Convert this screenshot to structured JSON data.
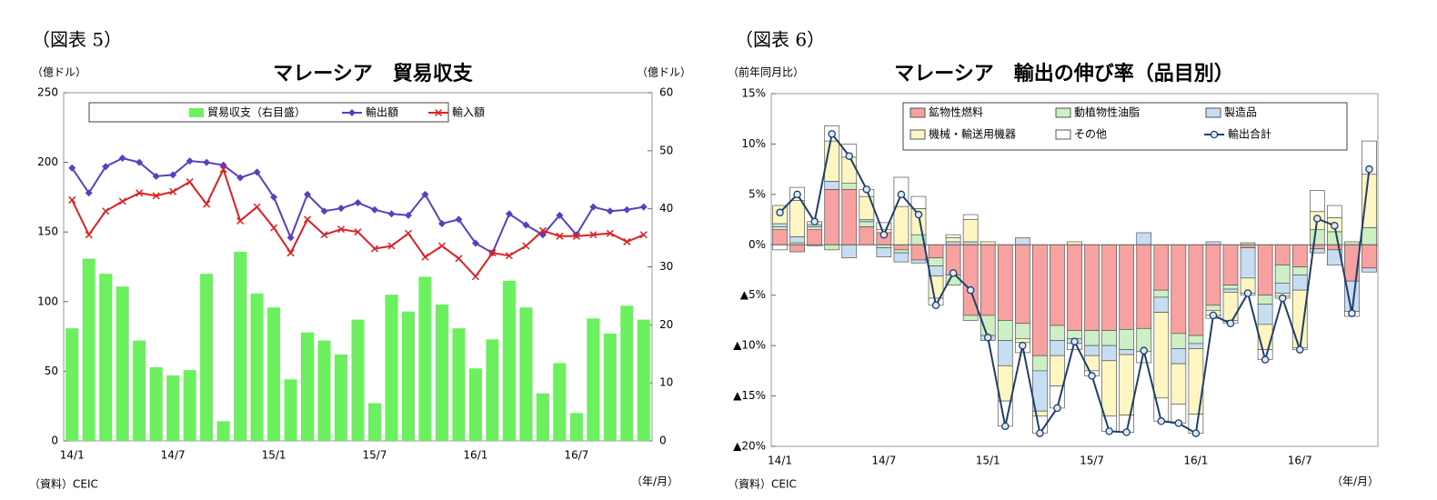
{
  "chart_data": [
    {
      "type": "combo",
      "label": "（図表 5）",
      "title": "マレーシア　貿易収支",
      "ylabel": "（億ドル）",
      "y2label": "（億ドル）",
      "xlabel": "（年/月）",
      "source": "（資料）CEIC",
      "categories": [
        "14/1",
        null,
        null,
        null,
        null,
        null,
        "14/7",
        null,
        null,
        null,
        null,
        null,
        "15/1",
        null,
        null,
        null,
        null,
        null,
        "15/7",
        null,
        null,
        null,
        null,
        null,
        "16/1",
        null,
        null,
        null,
        null,
        null,
        "16/7",
        null,
        null,
        null,
        null
      ],
      "ylim": [
        0,
        250
      ],
      "yticks": [
        0,
        50,
        100,
        150,
        200,
        250
      ],
      "y2lim": [
        0,
        60
      ],
      "y2ticks": [
        0,
        10,
        20,
        30,
        40,
        50,
        60
      ],
      "legend": "top",
      "series": [
        {
          "name": "貿易収支（右目盛）",
          "type": "bar",
          "axis": "y2",
          "color": "#6cf060",
          "values": [
            19.4,
            31.4,
            28.8,
            26.6,
            17.3,
            12.7,
            11.3,
            12.2,
            28.8,
            3.4,
            32.6,
            25.4,
            23,
            10.6,
            18.7,
            17.3,
            14.9,
            20.9,
            6.5,
            25.2,
            22.3,
            28.3,
            23.5,
            19.4,
            12.5,
            17.5,
            27.6,
            23,
            8.2,
            13.4,
            4.8,
            21.1,
            18.5,
            23.3,
            20.9
          ]
        },
        {
          "name": "輸出額",
          "type": "line",
          "marker": "diamond",
          "color": "#5a3fc0",
          "values": [
            196,
            178,
            197,
            203,
            200,
            190,
            191,
            201,
            200,
            198,
            189,
            193,
            175,
            146,
            177,
            165,
            167,
            171,
            166,
            163,
            162,
            177,
            156,
            159,
            142,
            135,
            163,
            155,
            148,
            162,
            148,
            168,
            165,
            166,
            168
          ]
        },
        {
          "name": "輸入額",
          "type": "line",
          "marker": "x",
          "color": "#e02020",
          "values": [
            173,
            148,
            165,
            172,
            178,
            176,
            179,
            186,
            170,
            195,
            158,
            168,
            153,
            135,
            159,
            148,
            152,
            150,
            138,
            140,
            149,
            132,
            140,
            131,
            118,
            135,
            133,
            140,
            151,
            147,
            147,
            148,
            149,
            143,
            148
          ]
        }
      ]
    },
    {
      "type": "stacked",
      "label": "（図表 6）",
      "title": "マレーシア　輸出の伸び率（品目別）",
      "ylabel": "（前年同月比）",
      "xlabel": "（年/月）",
      "source": "（資料）CEIC",
      "categories": [
        "14/1",
        null,
        null,
        null,
        null,
        null,
        "14/7",
        null,
        null,
        null,
        null,
        null,
        "15/1",
        null,
        null,
        null,
        null,
        null,
        "15/7",
        null,
        null,
        null,
        null,
        null,
        "16/1",
        null,
        null,
        null,
        null,
        null,
        "16/7",
        null,
        null,
        null,
        null
      ],
      "ylim": [
        -20,
        15
      ],
      "yticks": [
        {
          "value": -20,
          "label": "▲20%"
        },
        {
          "value": -15,
          "label": "▲15%"
        },
        {
          "value": -10,
          "label": "▲10%"
        },
        {
          "value": -5,
          "label": "▲5%"
        },
        {
          "value": 0,
          "label": "0%"
        },
        {
          "value": 5,
          "label": "5%"
        },
        {
          "value": 10,
          "label": "10%"
        },
        {
          "value": 15,
          "label": "15%"
        }
      ],
      "legend": "top",
      "series": [
        {
          "name": "鉱物性燃料",
          "type": "bar",
          "color": "#f7a1a1",
          "values": [
            1.5,
            -0.7,
            1.5,
            5.5,
            5.5,
            1.8,
            1.2,
            -0.5,
            -1.5,
            -1.3,
            -3.0,
            -7.0,
            -7.0,
            -7.5,
            -7.8,
            -11.0,
            -8.0,
            -8.5,
            -8.5,
            -8.5,
            -8.4,
            -8.3,
            -4.5,
            -8.8,
            -9.0,
            -6.0,
            -4.0,
            -0.3,
            -5.0,
            -2.0,
            -2.2,
            -0.4,
            -0.5,
            -3.6,
            -2.3
          ]
        },
        {
          "name": "動植物性油脂",
          "type": "bar",
          "color": "#ccf0c4",
          "values": [
            0.3,
            0.2,
            0.3,
            -0.5,
            0.6,
            0.5,
            -0.3,
            -0.3,
            1.0,
            -0.8,
            -1.0,
            -0.5,
            -2.0,
            -2.0,
            -1.5,
            -1.5,
            -1.5,
            -0.8,
            -1.5,
            -1.5,
            -2.0,
            -2.3,
            -0.7,
            -1.5,
            -0.8,
            -0.5,
            -0.4,
            0.2,
            -0.9,
            -1.8,
            -0.8,
            1.5,
            1.3,
            0.3,
            1.7
          ]
        },
        {
          "name": "製造品",
          "type": "bar",
          "color": "#c6ddf2",
          "values": [
            0.3,
            0.6,
            0.2,
            0.8,
            -1.3,
            0.2,
            -0.9,
            -0.9,
            -0.3,
            -1.0,
            0.3,
            0.3,
            -0.5,
            -2.5,
            0.7,
            -4.0,
            -1.5,
            -0.5,
            -1.0,
            -1.5,
            -0.5,
            1.2,
            -1.5,
            -1.5,
            -0.5,
            0.3,
            -0.3,
            -3.0,
            -2.0,
            -1.0,
            -1.5,
            -0.4,
            -1.5,
            -3.0,
            -0.4
          ]
        },
        {
          "name": "機械・輸送用機器",
          "type": "bar",
          "color": "#fdf6c2",
          "values": [
            1.8,
            3.6,
            0.3,
            4.0,
            2.6,
            2.3,
            0.3,
            3.8,
            2.6,
            -2.2,
            0.4,
            2.2,
            0.3,
            -3.5,
            -0.4,
            -0.5,
            -3.0,
            0.3,
            -1.5,
            -5.5,
            -6.0,
            0,
            -8.5,
            -4.0,
            -6.5,
            -0.5,
            -2.8,
            -1.5,
            -2.5,
            -0.3,
            -5.7,
            1.8,
            1.4,
            0,
            5.3
          ]
        },
        {
          "name": "その他",
          "type": "bar",
          "color": "#ffffff",
          "values": [
            -0.5,
            1.3,
            -0.1,
            1.5,
            1.3,
            0.7,
            0.7,
            2.9,
            1.2,
            -0.7,
            0.3,
            0.5,
            0,
            -2.5,
            -1.0,
            -1.7,
            -2.2,
            -0.6,
            -0.5,
            -1.5,
            -1.7,
            -1.1,
            -2.3,
            -1.9,
            -1.9,
            -0.3,
            -0.3,
            -0.2,
            -1.0,
            -0.2,
            -0.2,
            2.1,
            1.2,
            -0.5,
            3.3
          ]
        },
        {
          "name": "輸出合計",
          "type": "line",
          "marker": "circle",
          "color": "#1f3f6b",
          "values": [
            3.2,
            5.0,
            2.3,
            11.0,
            8.8,
            5.5,
            1.0,
            5.0,
            3.0,
            -6.0,
            -2.8,
            -4.5,
            -9.2,
            -18.0,
            -10.0,
            -18.7,
            -16.2,
            -9.6,
            -13.0,
            -18.5,
            -18.6,
            -10.5,
            -17.5,
            -17.7,
            -18.7,
            -7.0,
            -7.8,
            -4.8,
            -11.4,
            -5.3,
            -10.4,
            2.6,
            1.9,
            -6.8,
            7.5
          ]
        }
      ]
    }
  ]
}
